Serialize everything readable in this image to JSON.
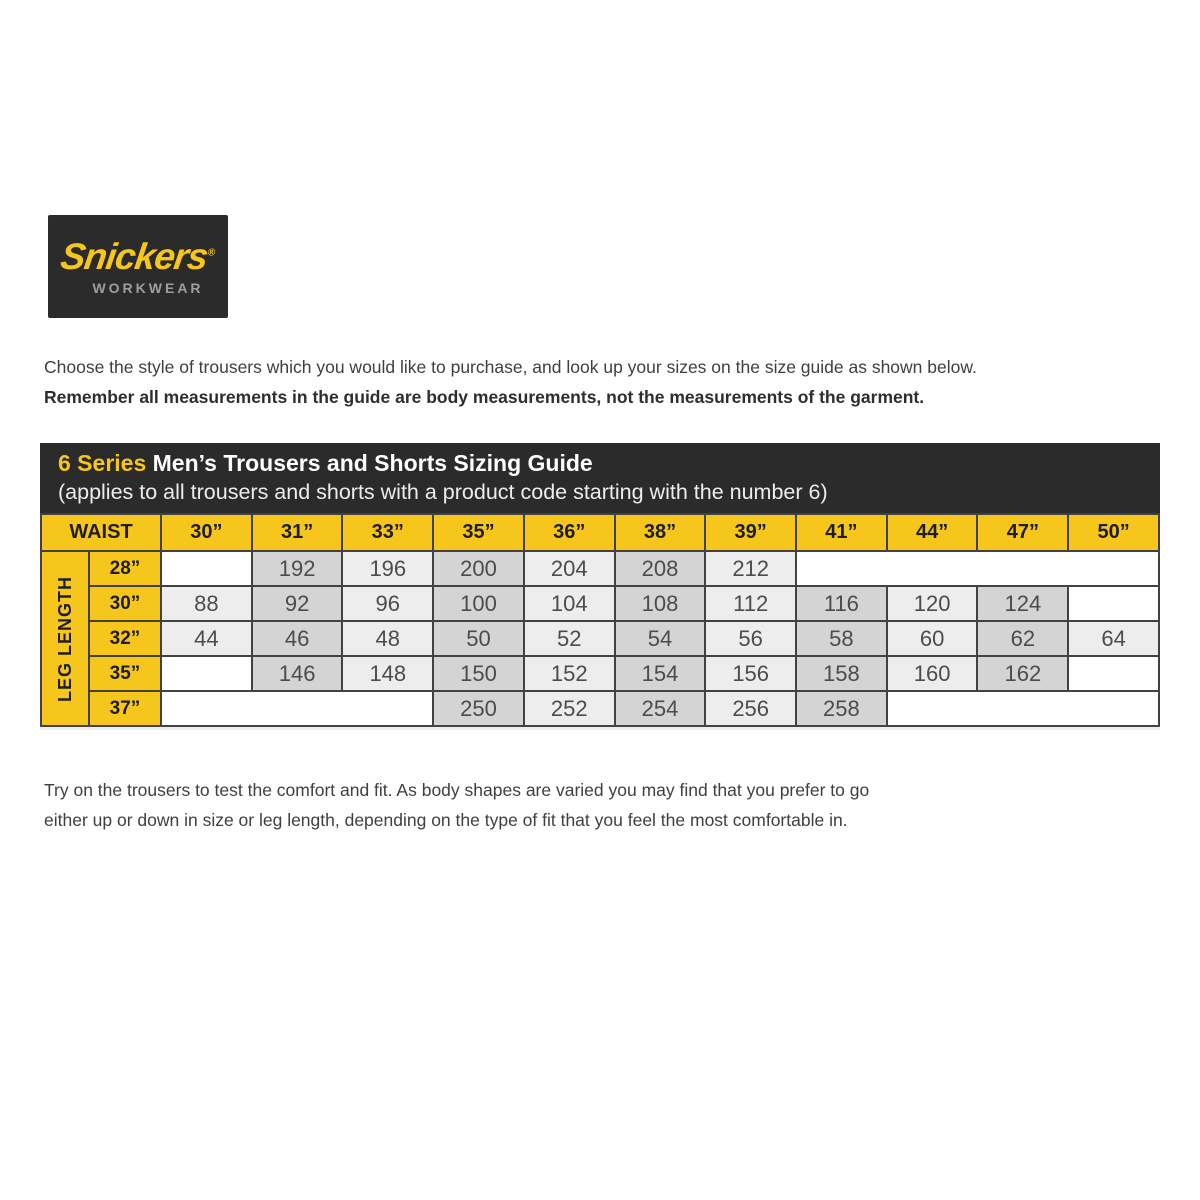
{
  "logo": {
    "brand": "Snickers",
    "registered_mark": "®",
    "sub_brand": "WORKWEAR"
  },
  "intro": {
    "line1": "Choose the style of trousers which you would like to purchase, and look up your sizes on the size guide as shown below.",
    "line2": "Remember all measurements in the guide are body measurements, not the measurements of the garment."
  },
  "size_table": {
    "title_series": "6 Series",
    "title_rest": " Men’s Trousers and Shorts Sizing Guide",
    "subtitle": "(applies to all trousers and shorts with a product code starting with the number 6)",
    "waist_label": "WAIST",
    "leg_label": "LEG LENGTH",
    "waist_sizes": [
      "30”",
      "31”",
      "33”",
      "35”",
      "36”",
      "38”",
      "39”",
      "41”",
      "44”",
      "47”",
      "50”"
    ],
    "rows": [
      {
        "leg": "28”",
        "cells": [
          {
            "v": "",
            "span": 1
          },
          {
            "v": "192",
            "span": 1
          },
          {
            "v": "196",
            "span": 1
          },
          {
            "v": "200",
            "span": 1
          },
          {
            "v": "204",
            "span": 1
          },
          {
            "v": "208",
            "span": 1
          },
          {
            "v": "212",
            "span": 1
          },
          {
            "v": "",
            "span": 4
          }
        ]
      },
      {
        "leg": "30”",
        "cells": [
          {
            "v": "88",
            "span": 1
          },
          {
            "v": "92",
            "span": 1
          },
          {
            "v": "96",
            "span": 1
          },
          {
            "v": "100",
            "span": 1
          },
          {
            "v": "104",
            "span": 1
          },
          {
            "v": "108",
            "span": 1
          },
          {
            "v": "112",
            "span": 1
          },
          {
            "v": "116",
            "span": 1
          },
          {
            "v": "120",
            "span": 1
          },
          {
            "v": "124",
            "span": 1
          },
          {
            "v": "",
            "span": 1
          }
        ]
      },
      {
        "leg": "32”",
        "cells": [
          {
            "v": "44",
            "span": 1
          },
          {
            "v": "46",
            "span": 1
          },
          {
            "v": "48",
            "span": 1
          },
          {
            "v": "50",
            "span": 1
          },
          {
            "v": "52",
            "span": 1
          },
          {
            "v": "54",
            "span": 1
          },
          {
            "v": "56",
            "span": 1
          },
          {
            "v": "58",
            "span": 1
          },
          {
            "v": "60",
            "span": 1
          },
          {
            "v": "62",
            "span": 1
          },
          {
            "v": "64",
            "span": 1
          }
        ]
      },
      {
        "leg": "35”",
        "cells": [
          {
            "v": "",
            "span": 1
          },
          {
            "v": "146",
            "span": 1
          },
          {
            "v": "148",
            "span": 1
          },
          {
            "v": "150",
            "span": 1
          },
          {
            "v": "152",
            "span": 1
          },
          {
            "v": "154",
            "span": 1
          },
          {
            "v": "156",
            "span": 1
          },
          {
            "v": "158",
            "span": 1
          },
          {
            "v": "160",
            "span": 1
          },
          {
            "v": "162",
            "span": 1
          },
          {
            "v": "",
            "span": 1
          }
        ]
      },
      {
        "leg": "37”",
        "cells": [
          {
            "v": "",
            "span": 3
          },
          {
            "v": "250",
            "span": 1
          },
          {
            "v": "252",
            "span": 1
          },
          {
            "v": "254",
            "span": 1
          },
          {
            "v": "256",
            "span": 1
          },
          {
            "v": "258",
            "span": 1
          },
          {
            "v": "",
            "span": 3
          }
        ]
      }
    ]
  },
  "footer": {
    "line1": "Try on the trousers to test the comfort and fit. As body shapes are varied you may find that you prefer to go",
    "line2": "either up or down in size or leg length, depending on the type of fit that you feel the most comfortable in."
  },
  "colors": {
    "brand_yellow": "#F7C61C",
    "header_bar": "#2B2B2B",
    "cell_gray": "#D4D4D4",
    "cell_light": "#EDEDED",
    "grid_border": "#424242",
    "workwear_gray": "#9E9E9E"
  }
}
